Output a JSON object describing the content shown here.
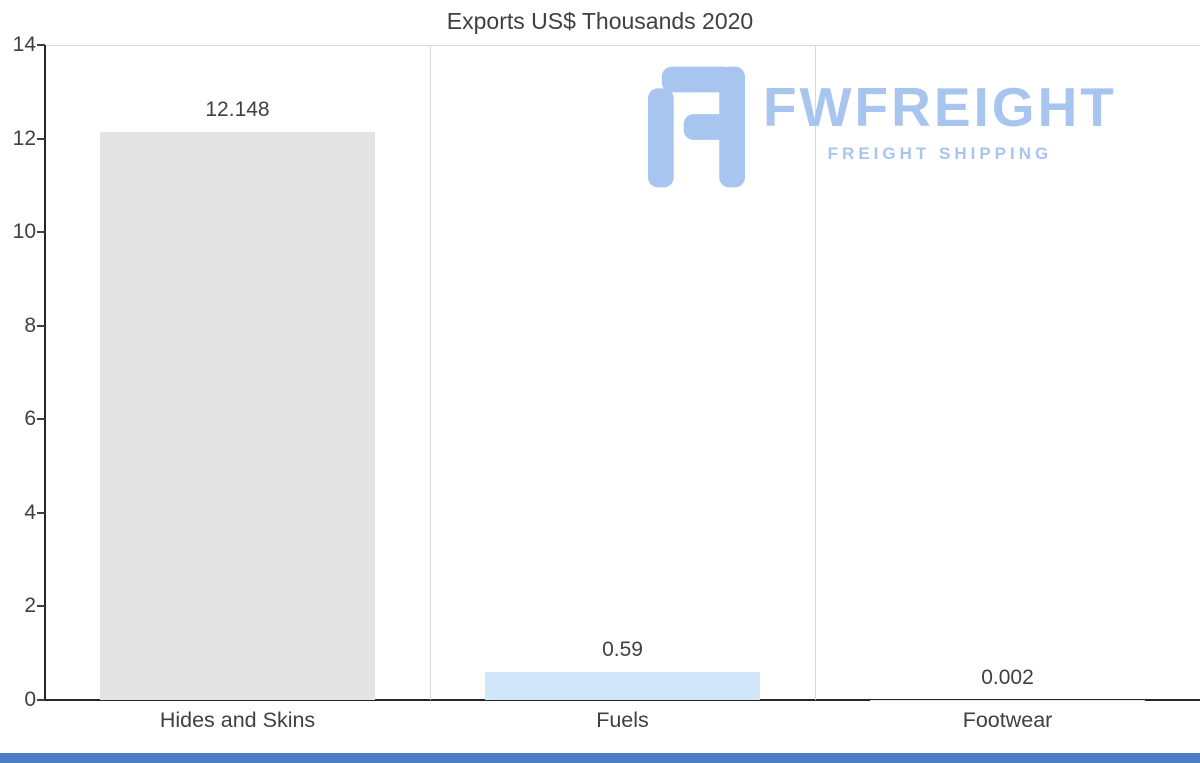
{
  "chart_data": {
    "type": "bar",
    "title": "Exports US$ Thousands 2020",
    "categories": [
      "Hides and Skins",
      "Fuels",
      "Footwear"
    ],
    "values": [
      12.148,
      0.59,
      0.002
    ],
    "value_labels": [
      "12.148",
      "0.59",
      "0.002"
    ],
    "bar_colors": [
      "#e4e4e4",
      "#d2e6f9",
      "#d2e6f9"
    ],
    "xlabel": "",
    "ylabel": "",
    "ylim": [
      0,
      14
    ],
    "yticks": [
      0,
      2,
      4,
      6,
      8,
      10,
      12,
      14
    ],
    "grid": "vertical category separators and top plot border only",
    "legend": "none"
  },
  "watermark": {
    "brand": "FWFREIGHT",
    "tagline": "FREIGHT SHIPPING",
    "color": "#a8c5f0"
  },
  "colors": {
    "background": "#ffffff",
    "axis": "#262626",
    "gridline": "#d9d9d9",
    "text": "#404040",
    "bottom_bar": "#4b7cc4"
  }
}
